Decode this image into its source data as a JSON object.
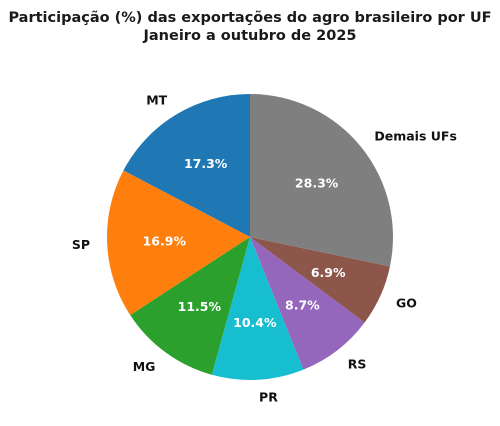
{
  "chart_data": {
    "type": "pie",
    "title": "Participação (%) das exportações do agro brasileiro por UF",
    "subtitle": "Janeiro a outubro de 2025",
    "start_angle_deg": 90,
    "direction": "counterclockwise",
    "categories": [
      "MT",
      "SP",
      "MG",
      "PR",
      "RS",
      "GO",
      "Demais UFs"
    ],
    "values": [
      17.3,
      16.9,
      11.5,
      10.4,
      8.7,
      6.9,
      28.3
    ],
    "value_labels": [
      "17.3%",
      "16.9%",
      "11.5%",
      "10.4%",
      "8.7%",
      "6.9%",
      "28.3%"
    ],
    "colors": [
      "#1f77b4",
      "#ff7f0e",
      "#2ca02c",
      "#17becf",
      "#9467bd",
      "#8c564b",
      "#7f7f7f"
    ],
    "legend": "none"
  }
}
